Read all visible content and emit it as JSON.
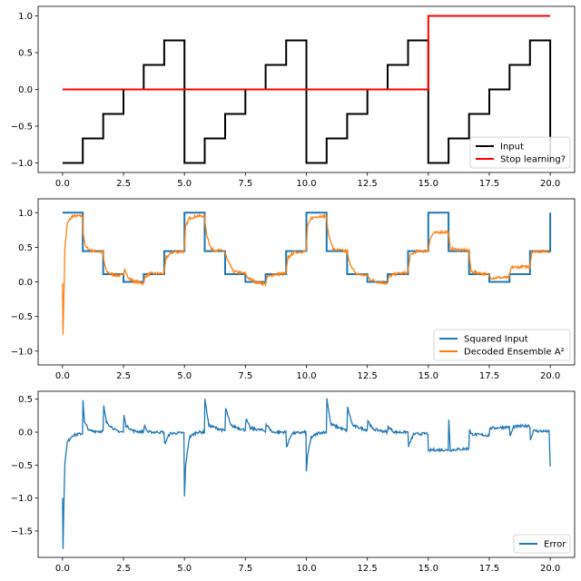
{
  "chart_data": [
    {
      "type": "line",
      "xlim": [
        -1.0,
        21.0
      ],
      "ylim": [
        -1.13,
        1.13
      ],
      "xticks": [
        0.0,
        2.5,
        5.0,
        7.5,
        10.0,
        12.5,
        15.0,
        17.5,
        20.0
      ],
      "xtick_labels": [
        "0.0",
        "2.5",
        "5.0",
        "7.5",
        "10.0",
        "12.5",
        "15.0",
        "17.5",
        "20.0"
      ],
      "yticks": [
        -1.0,
        -0.5,
        0.0,
        0.5,
        1.0
      ],
      "ytick_labels": [
        "−1.0",
        "−0.5",
        "0.0",
        "0.5",
        "1.0"
      ],
      "grid": false,
      "legend_placement": "lower-right",
      "series": [
        {
          "name": "Input",
          "color": "#000000",
          "step": true,
          "x": [
            0.0,
            0.83,
            1.67,
            2.5,
            3.33,
            4.17,
            5.0,
            5.83,
            6.67,
            7.5,
            8.33,
            9.17,
            10.0,
            10.83,
            11.67,
            12.5,
            13.33,
            14.17,
            15.0,
            15.83,
            16.67,
            17.5,
            18.33,
            19.17,
            20.0
          ],
          "y": [
            -1.0,
            -0.667,
            -0.333,
            0.0,
            0.333,
            0.667,
            -1.0,
            -0.667,
            -0.333,
            0.0,
            0.333,
            0.667,
            -1.0,
            -0.667,
            -0.333,
            0.0,
            0.333,
            0.667,
            -1.0,
            -0.667,
            -0.333,
            0.0,
            0.333,
            0.667,
            -1.0
          ]
        },
        {
          "name": "Stop learning?",
          "color": "#ff0000",
          "step": true,
          "x": [
            0.0,
            15.0,
            20.0
          ],
          "y": [
            0.0,
            1.0,
            1.0
          ]
        }
      ]
    },
    {
      "type": "line",
      "xlim": [
        -1.0,
        21.0
      ],
      "ylim": [
        -1.2,
        1.2
      ],
      "xticks": [
        0.0,
        2.5,
        5.0,
        7.5,
        10.0,
        12.5,
        15.0,
        17.5,
        20.0
      ],
      "xtick_labels": [
        "0.0",
        "2.5",
        "5.0",
        "7.5",
        "10.0",
        "12.5",
        "15.0",
        "17.5",
        "20.0"
      ],
      "yticks": [
        -1.0,
        -0.5,
        0.0,
        0.5,
        1.0
      ],
      "ytick_labels": [
        "−1.0",
        "−0.5",
        "0.0",
        "0.5",
        "1.0"
      ],
      "grid": false,
      "legend_placement": "lower-right",
      "series": [
        {
          "name": "Squared Input",
          "color": "#1f77b4",
          "step": true,
          "x": [
            0.0,
            0.83,
            1.67,
            2.5,
            3.33,
            4.17,
            5.0,
            5.83,
            6.67,
            7.5,
            8.33,
            9.17,
            10.0,
            10.83,
            11.67,
            12.5,
            13.33,
            14.17,
            15.0,
            15.83,
            16.67,
            17.5,
            18.33,
            19.17,
            20.0
          ],
          "y": [
            1.0,
            0.444,
            0.111,
            0.0,
            0.111,
            0.444,
            1.0,
            0.444,
            0.111,
            0.0,
            0.111,
            0.444,
            1.0,
            0.444,
            0.111,
            0.0,
            0.111,
            0.444,
            1.0,
            0.444,
            0.111,
            0.0,
            0.111,
            0.444,
            1.0
          ]
        },
        {
          "name": "Decoded Ensemble A²",
          "color": "#ff7f0e",
          "noisy": true,
          "x": [
            0.0,
            0.02,
            0.05,
            0.1,
            0.2,
            0.4,
            0.82,
            0.85,
            0.95,
            1.2,
            1.66,
            1.7,
            1.8,
            2.1,
            2.49,
            2.55,
            2.7,
            3.0,
            3.32,
            3.4,
            3.6,
            4.16,
            4.25,
            4.5,
            4.99,
            5.05,
            5.2,
            5.5,
            5.82,
            5.9,
            6.1,
            6.66,
            6.75,
            7.0,
            7.49,
            7.6,
            7.9,
            8.32,
            8.4,
            8.7,
            9.16,
            9.25,
            9.5,
            9.99,
            10.05,
            10.2,
            10.5,
            10.82,
            10.9,
            11.1,
            11.66,
            11.75,
            12.0,
            12.49,
            12.6,
            12.9,
            13.32,
            13.4,
            13.7,
            14.16,
            14.25,
            14.5,
            14.99,
            15.05,
            15.2,
            15.5,
            15.82,
            15.9,
            16.66,
            16.75,
            17.49,
            17.55,
            18.32,
            18.4,
            19.16,
            19.25,
            20.0
          ],
          "y": [
            0.0,
            -0.78,
            -0.3,
            0.5,
            0.85,
            0.95,
            0.95,
            0.7,
            0.5,
            0.45,
            0.43,
            0.3,
            0.15,
            0.1,
            0.09,
            0.2,
            0.05,
            0.0,
            -0.02,
            0.08,
            0.12,
            0.12,
            0.35,
            0.43,
            0.44,
            0.8,
            0.92,
            0.95,
            0.95,
            0.7,
            0.47,
            0.44,
            0.32,
            0.15,
            0.12,
            0.06,
            0.0,
            -0.03,
            0.07,
            0.11,
            0.12,
            0.35,
            0.43,
            0.44,
            0.8,
            0.92,
            0.95,
            0.95,
            0.7,
            0.47,
            0.44,
            0.3,
            0.12,
            0.09,
            0.04,
            0.0,
            -0.02,
            0.08,
            0.12,
            0.13,
            0.38,
            0.44,
            0.45,
            0.6,
            0.7,
            0.72,
            0.72,
            0.48,
            0.45,
            0.15,
            0.1,
            0.06,
            0.06,
            0.21,
            0.22,
            0.44,
            0.44
          ]
        }
      ]
    },
    {
      "type": "line",
      "xlim": [
        -1.0,
        21.0
      ],
      "ylim": [
        -1.9,
        0.62
      ],
      "xticks": [
        0.0,
        2.5,
        5.0,
        7.5,
        10.0,
        12.5,
        15.0,
        17.5,
        20.0
      ],
      "xtick_labels": [
        "0.0",
        "2.5",
        "5.0",
        "7.5",
        "10.0",
        "12.5",
        "15.0",
        "17.5",
        "20.0"
      ],
      "yticks": [
        -1.5,
        -1.0,
        -0.5,
        0.0,
        0.5
      ],
      "ytick_labels": [
        "−1.5",
        "−1.0",
        "−0.5",
        "0.0",
        "0.5"
      ],
      "grid": false,
      "legend_placement": "lower-right",
      "series": [
        {
          "name": "Error",
          "color": "#1f77b4",
          "noisy": true,
          "x": [
            0.0,
            0.02,
            0.05,
            0.1,
            0.2,
            0.4,
            0.82,
            0.84,
            0.9,
            1.1,
            1.66,
            1.69,
            1.8,
            2.2,
            2.49,
            2.52,
            2.6,
            2.9,
            3.32,
            3.35,
            3.5,
            4.16,
            4.19,
            4.4,
            4.98,
            5.0,
            5.05,
            5.2,
            5.5,
            5.82,
            5.84,
            6.0,
            6.66,
            6.69,
            6.9,
            7.49,
            7.52,
            7.7,
            8.32,
            8.35,
            8.6,
            9.16,
            9.19,
            9.4,
            9.98,
            10.0,
            10.05,
            10.2,
            10.5,
            10.82,
            10.84,
            11.0,
            11.66,
            11.69,
            11.9,
            12.49,
            12.52,
            12.7,
            13.32,
            13.35,
            13.6,
            14.16,
            14.19,
            14.4,
            14.98,
            15.0,
            15.1,
            15.5,
            15.82,
            15.84,
            15.9,
            16.66,
            16.69,
            16.75,
            17.49,
            17.52,
            17.6,
            18.32,
            18.35,
            18.5,
            19.16,
            19.19,
            19.3,
            19.95,
            20.0
          ],
          "y": [
            -1.0,
            -1.78,
            -1.2,
            -0.45,
            -0.15,
            -0.05,
            -0.02,
            0.5,
            0.15,
            0.02,
            0.01,
            0.39,
            0.15,
            0.02,
            0.0,
            0.25,
            0.1,
            0.02,
            0.0,
            0.1,
            0.0,
            0.0,
            -0.18,
            -0.02,
            -0.01,
            -0.98,
            -0.5,
            -0.08,
            0.0,
            0.0,
            0.5,
            0.1,
            0.02,
            0.36,
            0.1,
            0.03,
            0.2,
            0.06,
            0.02,
            0.12,
            0.0,
            0.0,
            -0.22,
            -0.02,
            0.0,
            -0.6,
            -0.35,
            -0.08,
            -0.01,
            0.0,
            0.51,
            0.12,
            0.02,
            0.37,
            0.1,
            0.03,
            0.18,
            0.05,
            0.0,
            0.08,
            0.0,
            0.0,
            -0.21,
            -0.03,
            -0.02,
            -0.3,
            -0.27,
            -0.27,
            -0.27,
            0.2,
            -0.27,
            -0.25,
            0.05,
            -0.03,
            -0.05,
            0.05,
            0.06,
            0.08,
            -0.06,
            0.08,
            0.1,
            -0.12,
            0.02,
            0.01,
            -0.52
          ]
        }
      ]
    }
  ]
}
